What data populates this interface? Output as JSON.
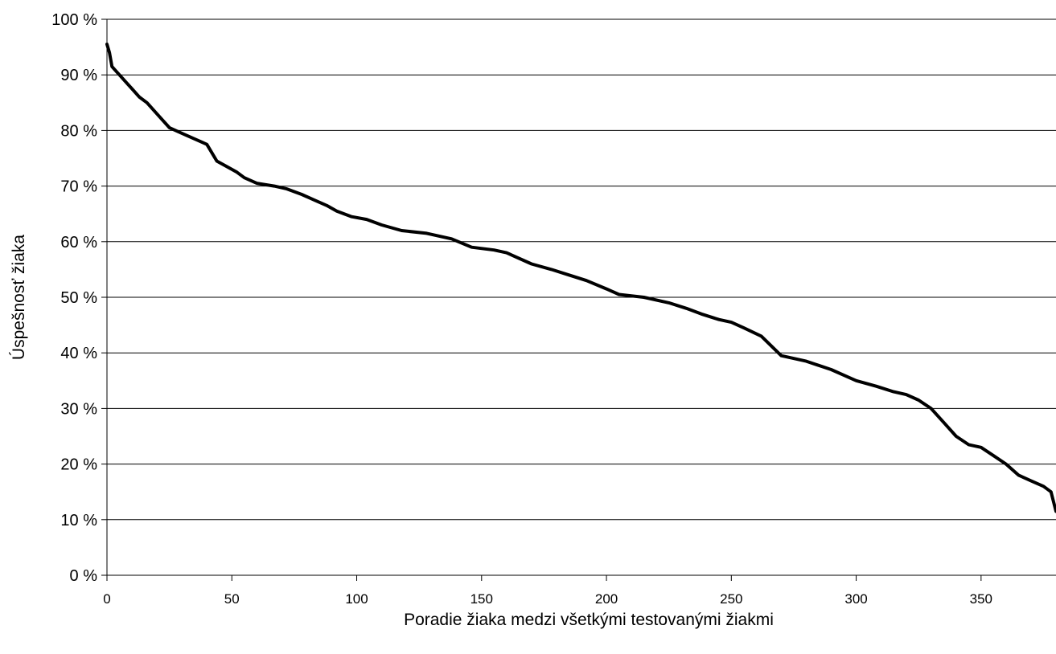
{
  "chart_data": {
    "type": "line",
    "title": "",
    "xlabel": "Poradie žiaka medzi všetkými testovanými žiakmi",
    "ylabel": "Úspešnosť žiaka",
    "xlim": [
      0,
      380
    ],
    "ylim": [
      0,
      100
    ],
    "x_ticks": [
      0,
      50,
      100,
      150,
      200,
      250,
      300,
      350
    ],
    "y_ticks": [
      0,
      10,
      20,
      30,
      40,
      50,
      60,
      70,
      80,
      90,
      100
    ],
    "y_tick_labels": [
      "0 %",
      "10 %",
      "20 %",
      "30 %",
      "40 %",
      "50 %",
      "60 %",
      "70 %",
      "80 %",
      "90 %",
      "100 %"
    ],
    "grid": "horizontal",
    "line_color": "#000000",
    "series": [
      {
        "x": [
          0,
          1,
          2,
          3,
          5,
          8,
          10,
          13,
          16,
          19,
          22,
          25,
          30,
          35,
          40,
          44,
          48,
          52,
          55,
          60,
          67,
          72,
          78,
          83,
          88,
          92,
          98,
          104,
          110,
          118,
          128,
          138,
          146,
          155,
          160,
          170,
          178,
          185,
          192,
          200,
          205,
          215,
          225,
          232,
          238,
          245,
          250,
          255,
          262,
          270,
          280,
          290,
          295,
          300,
          308,
          315,
          320,
          325,
          330,
          335,
          340,
          345,
          350,
          355,
          360,
          365,
          370,
          375,
          378,
          380
        ],
        "y": [
          95.5,
          94,
          91.5,
          91,
          90,
          88.5,
          87.5,
          86,
          85,
          83.5,
          82,
          80.5,
          79.5,
          78.5,
          77.5,
          74.5,
          73.5,
          72.5,
          71.5,
          70.5,
          70,
          69.5,
          68.5,
          67.5,
          66.5,
          65.5,
          64.5,
          64,
          63,
          62,
          61.5,
          60.5,
          59,
          58.5,
          58,
          56,
          55,
          54,
          53,
          51.5,
          50.5,
          50,
          49,
          48,
          47,
          46,
          45.5,
          44.5,
          43,
          39.5,
          38.5,
          37,
          36,
          35,
          34,
          33,
          32.5,
          31.5,
          30,
          27.5,
          25,
          23.5,
          23,
          21.5,
          20,
          18,
          17,
          16,
          15,
          11.5
        ]
      }
    ]
  }
}
